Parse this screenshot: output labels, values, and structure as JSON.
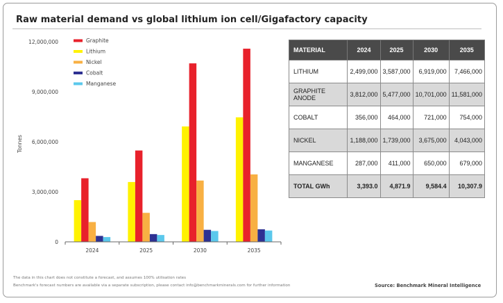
{
  "title": "Raw material demand vs global lithium ion cell/Gigafactory capacity",
  "footnotes": {
    "line1": "The data in this chart does not constitute a forecast, and assumes 100% utilisation rates",
    "line2": "Benchmark's forecast numbers are available via a separate subscription, please contact info@benchmarkminerals.com for further information",
    "source": "Source: Benchmark Mineral Intelligence"
  },
  "colors": {
    "graphite": "#e8212b",
    "lithium": "#fff200",
    "nickel": "#f8b043",
    "cobalt": "#2e3192",
    "manganese": "#5bc8ec",
    "table_header": "#4a4a4a",
    "table_shade": "#d9d9d9"
  },
  "chart_data": {
    "type": "bar",
    "categories": [
      "2024",
      "2025",
      "2030",
      "2035"
    ],
    "ylabel": "Tonnes",
    "xlabel": "",
    "ylim": [
      0,
      12000000
    ],
    "yticks": [
      0,
      3000000,
      6000000,
      9000000,
      12000000
    ],
    "ytick_labels": [
      "0",
      "3,000,000",
      "6,000,000",
      "9,000,000",
      "12,000,000"
    ],
    "grid": false,
    "legend_position": "top-left",
    "series": [
      {
        "name": "Lithium",
        "color_key": "lithium",
        "values": [
          2499000,
          3587000,
          6919000,
          7466000
        ]
      },
      {
        "name": "Graphite",
        "color_key": "graphite",
        "values": [
          3812000,
          5477000,
          10701000,
          11581000
        ]
      },
      {
        "name": "Nickel",
        "color_key": "nickel",
        "values": [
          1188000,
          1739000,
          3675000,
          4043000
        ]
      },
      {
        "name": "Cobalt",
        "color_key": "cobalt",
        "values": [
          356000,
          464000,
          721000,
          754000
        ]
      },
      {
        "name": "Manganese",
        "color_key": "manganese",
        "values": [
          287000,
          411000,
          650000,
          679000
        ]
      }
    ],
    "legend_order": [
      "Graphite",
      "Lithium",
      "Nickel",
      "Cobalt",
      "Manganese"
    ]
  },
  "table": {
    "headers": [
      "MATERIAL",
      "2024",
      "2025",
      "2030",
      "2035"
    ],
    "rows": [
      {
        "label": "LITHIUM",
        "values": [
          "2,499,000",
          "3,587,000",
          "6,919,000",
          "7,466,000"
        ]
      },
      {
        "label": "GRAPHITE ANODE",
        "values": [
          "3,812,000",
          "5,477,000",
          "10,701,000",
          "11,581,000"
        ]
      },
      {
        "label": "COBALT",
        "values": [
          "356,000",
          "464,000",
          "721,000",
          "754,000"
        ]
      },
      {
        "label": "NICKEL",
        "values": [
          "1,188,000",
          "1,739,000",
          "3,675,000",
          "4,043,000"
        ]
      },
      {
        "label": "MANGANESE",
        "values": [
          "287,000",
          "411,000",
          "650,000",
          "679,000"
        ]
      },
      {
        "label": "TOTAL GWh",
        "values": [
          "3,393.0",
          "4,871.9",
          "9,584.4",
          "10,307.9"
        ]
      }
    ]
  }
}
